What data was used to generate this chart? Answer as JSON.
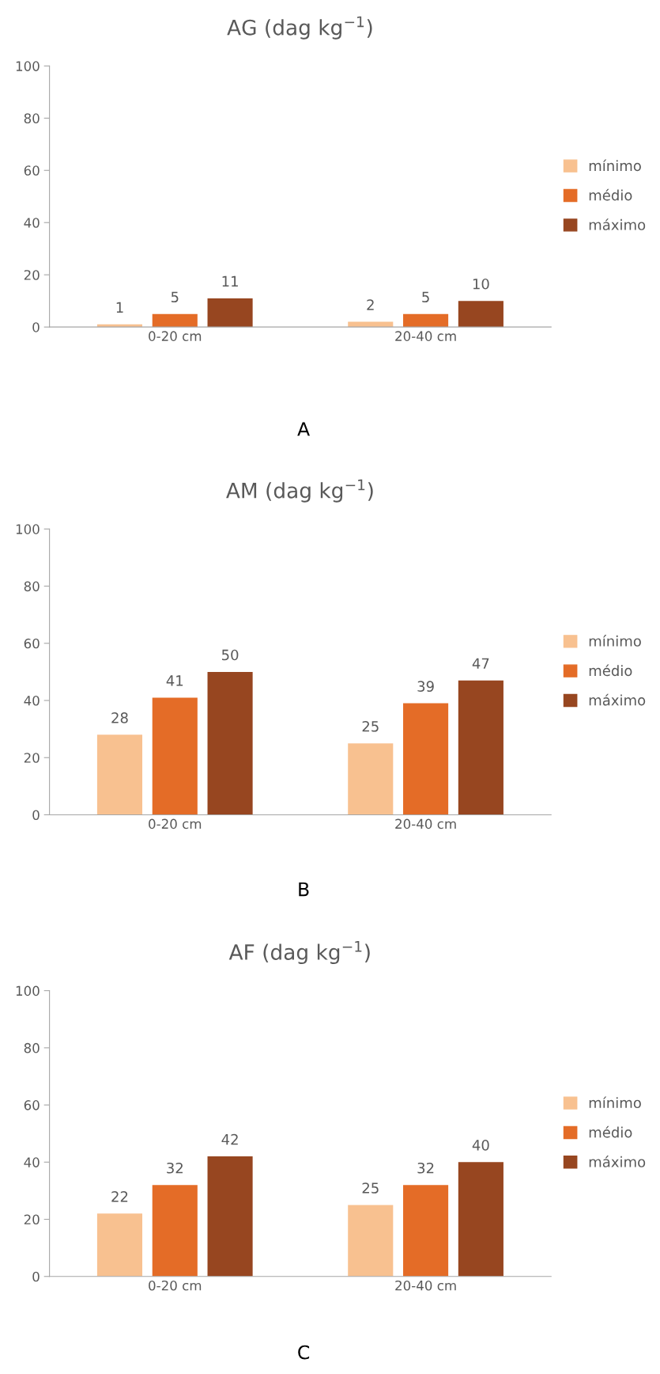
{
  "chart_data": [
    {
      "type": "bar",
      "title": "AG (dag kg$^{−1}$)",
      "categories": [
        "0-20 cm",
        "20-40 cm"
      ],
      "series": [
        {
          "name": "mínimo",
          "color": "#f8c190",
          "values": [
            1,
            2
          ]
        },
        {
          "name": "médio",
          "color": "#e46c27",
          "values": [
            5,
            5
          ]
        },
        {
          "name": "máximo",
          "color": "#974620",
          "values": [
            11,
            10
          ]
        }
      ],
      "ylim": [
        0,
        100
      ],
      "yticks": [
        0,
        20,
        40,
        60,
        80,
        100
      ],
      "data_labels": true,
      "grid": false,
      "legend": "right",
      "annotations": [
        "A"
      ]
    },
    {
      "type": "bar",
      "title": "AM (dag kg$^{−1}$)",
      "categories": [
        "0-20 cm",
        "20-40 cm"
      ],
      "series": [
        {
          "name": "mínimo",
          "color": "#f8c190",
          "values": [
            28,
            25
          ]
        },
        {
          "name": "médio",
          "color": "#e46c27",
          "values": [
            41,
            39
          ]
        },
        {
          "name": "máximo",
          "color": "#974620",
          "values": [
            50,
            47
          ]
        }
      ],
      "ylim": [
        0,
        100
      ],
      "yticks": [
        0,
        20,
        40,
        60,
        80,
        100
      ],
      "data_labels": true,
      "grid": false,
      "legend": "right",
      "annotations": [
        "B"
      ]
    },
    {
      "type": "bar",
      "title": "AF (dag kg$^{−1}$)",
      "categories": [
        "0-20 cm",
        "20-40 cm"
      ],
      "series": [
        {
          "name": "mínimo",
          "color": "#f8c190",
          "values": [
            22,
            25
          ]
        },
        {
          "name": "médio",
          "color": "#e46c27",
          "values": [
            32,
            32
          ]
        },
        {
          "name": "máximo",
          "color": "#974620",
          "values": [
            42,
            40
          ]
        }
      ],
      "ylim": [
        0,
        100
      ],
      "yticks": [
        0,
        20,
        40,
        60,
        80,
        100
      ],
      "data_labels": true,
      "grid": false,
      "legend": "right",
      "annotations": [
        "C"
      ]
    }
  ]
}
